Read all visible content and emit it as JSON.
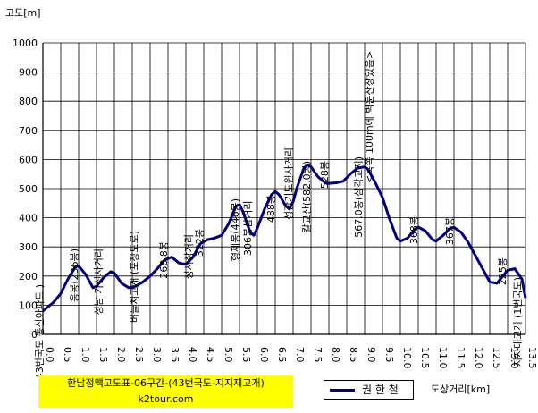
{
  "chart_data": {
    "type": "line",
    "ylabel": "고도[m]",
    "xlabel": "도상거리[km]",
    "ylim": [
      0,
      1000
    ],
    "xlim": [
      0,
      13.5
    ],
    "yticks": [
      "0",
      "100",
      "200",
      "300",
      "400",
      "500",
      "600",
      "700",
      "800",
      "900",
      "1000"
    ],
    "xticks": [
      "0.0",
      "0.5",
      "1.0",
      "1.5",
      "2.0",
      "2.5",
      "3.0",
      "3.5",
      "4.0",
      "4.5",
      "5.0",
      "5.5",
      "6.0",
      "6.5",
      "7.0",
      "7.5",
      "8.0",
      "8.5",
      "9.0",
      "9.5",
      "10.0",
      "10.5",
      "11.0",
      "11.5",
      "12.0",
      "12.5",
      "13.0",
      "13.5"
    ],
    "grid": true,
    "legend_position": "bottom",
    "series": [
      {
        "name": "권 한 철",
        "color": "#000080",
        "x": [
          0.0,
          0.3,
          0.5,
          0.7,
          0.9,
          1.0,
          1.2,
          1.4,
          1.5,
          1.7,
          1.9,
          2.0,
          2.2,
          2.4,
          2.6,
          2.8,
          3.0,
          3.2,
          3.4,
          3.6,
          3.8,
          4.0,
          4.2,
          4.4,
          4.6,
          4.8,
          5.0,
          5.2,
          5.3,
          5.4,
          5.5,
          5.6,
          5.7,
          5.8,
          5.9,
          6.0,
          6.2,
          6.4,
          6.5,
          6.6,
          6.8,
          6.9,
          7.0,
          7.1,
          7.2,
          7.3,
          7.4,
          7.5,
          7.7,
          7.9,
          8.0,
          8.2,
          8.4,
          8.6,
          8.8,
          9.0,
          9.1,
          9.3,
          9.5,
          9.7,
          9.9,
          10.0,
          10.2,
          10.4,
          10.5,
          10.7,
          10.9,
          11.0,
          11.2,
          11.4,
          11.5,
          11.7,
          11.9,
          12.1,
          12.3,
          12.5,
          12.7,
          12.9,
          13.0,
          13.2,
          13.4,
          13.5
        ],
        "y": [
          80,
          110,
          140,
          190,
          230,
          235,
          205,
          160,
          165,
          195,
          215,
          210,
          175,
          160,
          165,
          180,
          200,
          225,
          255,
          265,
          245,
          240,
          265,
          310,
          325,
          330,
          340,
          380,
          410,
          440,
          445,
          420,
          385,
          350,
          340,
          365,
          430,
          480,
          490,
          480,
          440,
          430,
          455,
          500,
          535,
          570,
          582,
          575,
          540,
          520,
          518,
          520,
          525,
          550,
          570,
          575,
          565,
          520,
          470,
          395,
          330,
          320,
          330,
          360,
          368,
          355,
          325,
          320,
          340,
          365,
          367,
          350,
          315,
          270,
          225,
          180,
          175,
          205,
          220,
          225,
          190,
          125
        ]
      }
    ],
    "annotations": [
      {
        "text": "43번국도 통산아파트 )",
        "x": 0.0,
        "y": 80
      },
      {
        "text": "응봉(236봉)",
        "x": 1.0,
        "y": 236
      },
      {
        "text": "성남 가산사거리",
        "x": 1.5,
        "y": 165
      },
      {
        "text": "버들치고개 (포장도로)",
        "x": 2.5,
        "y": 160
      },
      {
        "text": "268.8봉",
        "x": 3.5,
        "y": 268
      },
      {
        "text": "성서삼거리",
        "x": 4.0,
        "y": 240
      },
      {
        "text": "322봉",
        "x": 4.5,
        "y": 322
      },
      {
        "text": "306봉삼거리",
        "x": 5.9,
        "y": 340
      },
      {
        "text": "형제봉(446봉)",
        "x": 5.5,
        "y": 446
      },
      {
        "text": "488봉",
        "x": 6.5,
        "y": 488
      },
      {
        "text": "성광기도원사거리",
        "x": 7.0,
        "y": 430
      },
      {
        "text": "칼교산(582.0봉)",
        "x": 7.5,
        "y": 582
      },
      {
        "text": "528봉",
        "x": 8.0,
        "y": 528
      },
      {
        "text": "567.0봉(삼각고지)",
        "x": 9.0,
        "y": 567
      },
      {
        "text": "<북쪽 100m에 벽운산장있음>",
        "x": 9.0,
        "y": 575
      },
      {
        "text": "368봉",
        "x": 10.5,
        "y": 368
      },
      {
        "text": "367봉",
        "x": 11.5,
        "y": 367
      },
      {
        "text": "225봉",
        "x": 13.0,
        "y": 225
      },
      {
        "text": "지지대고개 (1번국도)",
        "x": 13.5,
        "y": 125
      }
    ]
  },
  "title_box": {
    "title": "한남정맥고도표-06구간-(43번국도-지지재고개)",
    "site": "k2tour.com"
  },
  "legend": {
    "label": "권 한 철"
  }
}
